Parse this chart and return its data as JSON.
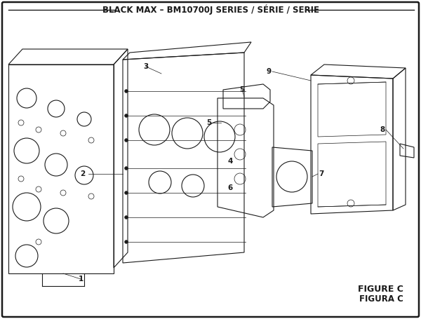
{
  "title": "BLACK MAX – BM10700J SERIES / SÉRIE / SERIE",
  "figure_label": "FIGURE C",
  "figura_label": "FIGURA C",
  "bg_color": "#ffffff",
  "border_color": "#1a1a1a",
  "line_color": "#1a1a1a",
  "title_fontsize": 8.5,
  "label_fontsize": 7.5,
  "figure_fontsize": 9
}
